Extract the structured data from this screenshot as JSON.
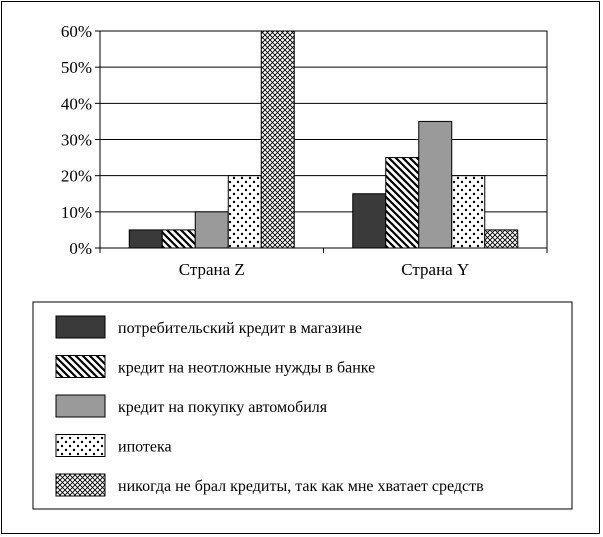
{
  "chart_data": {
    "type": "bar",
    "categories": [
      "Страна Z",
      "Страна Y"
    ],
    "series": [
      {
        "name": "потребительский кредит в магазине",
        "values": [
          5,
          15
        ],
        "pattern": "dark"
      },
      {
        "name": "кредит на неотложные нужды в банке",
        "values": [
          5,
          25
        ],
        "pattern": "hatch"
      },
      {
        "name": "кредит на покупку автомобиля",
        "values": [
          10,
          35
        ],
        "pattern": "gray"
      },
      {
        "name": "ипотека",
        "values": [
          20,
          20
        ],
        "pattern": "dots"
      },
      {
        "name": "никогда не брал кредиты, так как мне хватает средств",
        "values": [
          60,
          5
        ],
        "pattern": "crosshatch"
      }
    ],
    "ylim": [
      0,
      60
    ],
    "yticks": [
      "0%",
      "10%",
      "20%",
      "30%",
      "40%",
      "50%",
      "60%"
    ],
    "ytick_values": [
      0,
      10,
      20,
      30,
      40,
      50,
      60
    ],
    "grid": true,
    "legend_position": "bottom",
    "colors": {
      "dark": "#3a3a3a",
      "gray": "#9a9a9a",
      "line": "#000000"
    }
  }
}
